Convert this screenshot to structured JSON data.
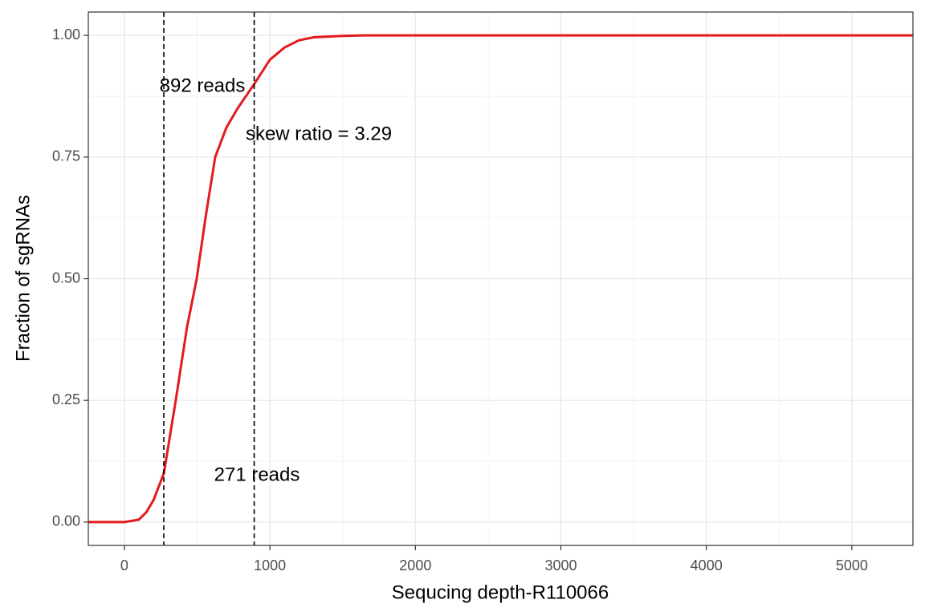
{
  "chart_data": {
    "type": "line",
    "x_label": "Sequcing depth-R110066",
    "y_label": "Fraction of sgRNAs",
    "x": [
      -248,
      0,
      100,
      150,
      200,
      271,
      353,
      430,
      497,
      560,
      624,
      700,
      778,
      892,
      1000,
      1100,
      1200,
      1300,
      1500,
      1650,
      5420
    ],
    "series": [
      {
        "name": "R110066",
        "color": "#e41a1c",
        "values": [
          0,
          0,
          0.005,
          0.02,
          0.045,
          0.1,
          0.25,
          0.4,
          0.5,
          0.63,
          0.75,
          0.81,
          0.85,
          0.9,
          0.95,
          0.975,
          0.99,
          0.996,
          0.999,
          1,
          1
        ]
      }
    ],
    "xlim": [
      -248,
      5420
    ],
    "ylim": [
      -0.048,
      1.048
    ],
    "xticks": [
      0,
      1000,
      2000,
      3000,
      4000,
      5000
    ],
    "yticks": [
      {
        "value": 0,
        "label": "0.00"
      },
      {
        "value": 0.25,
        "label": "0.25"
      },
      {
        "value": 0.5,
        "label": "0.50"
      },
      {
        "value": 0.75,
        "label": "0.75"
      },
      {
        "value": 1,
        "label": "1.00"
      }
    ],
    "xminor": [
      500,
      1500,
      2500,
      3500,
      4500
    ],
    "yminor": [
      0.125,
      0.375,
      0.625,
      0.875
    ],
    "grid": true,
    "vlines": [
      271,
      892
    ],
    "annotations": [
      "892 reads",
      "271 reads",
      "skew ratio = 3.29"
    ]
  }
}
